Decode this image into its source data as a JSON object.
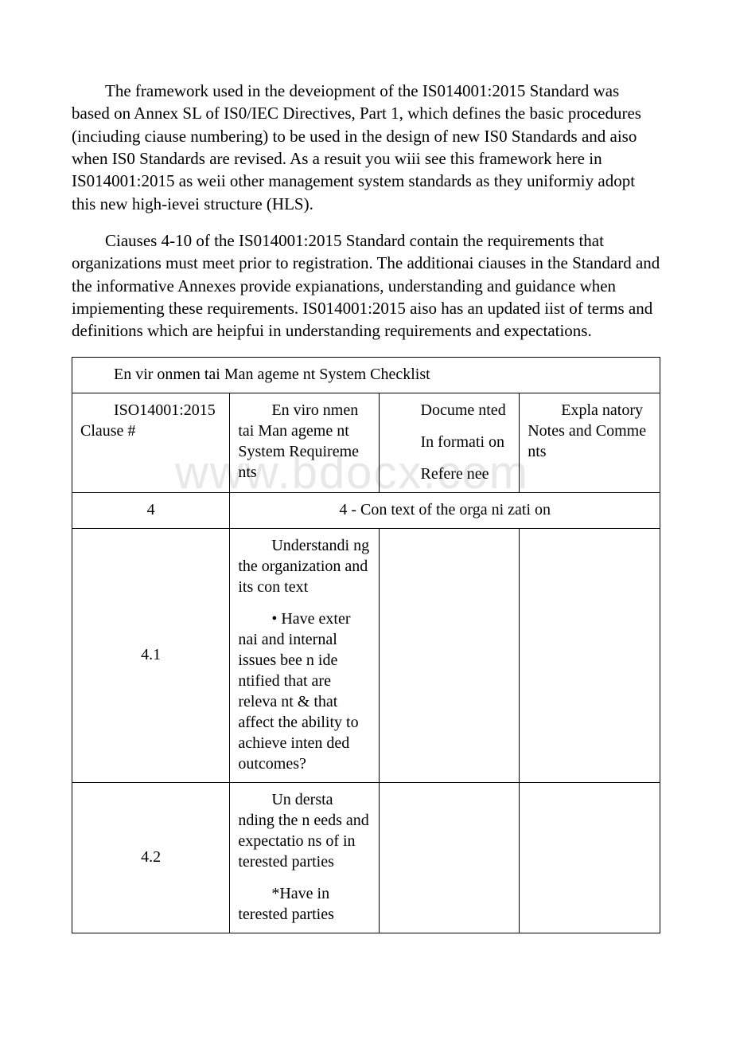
{
  "watermark": "www.bdocx.com",
  "paragraphs": {
    "p1": "The framework used in the deveiopment of the IS014001:2015 Standard was based on Annex SL of IS0/IEC Directives, Part 1, which defines the basic procedures (inciuding ciause numbering) to be used in the design of new IS0 Standards and aiso when IS0 Standards are revised. As a resuit you wiii see this framework here in IS014001:2015 as weii other management system standards as they uniformiy adopt this new high-ievei structure (HLS).",
    "p2": "Ciauses 4-10 of the IS014001:2015 Standard contain the requirements that organizations must meet prior to registration. The additionai ciauses in the Standard and the informative Annexes provide expianations, understanding and guidance when impiementing these requirements. IS014001:2015 aiso has an updated iist of terms and definitions which are heipfui in understanding requirements and expectations."
  },
  "table": {
    "title": "En vir onmen tai Man ageme nt System Checklist",
    "headers": {
      "h1": "ISO14001:2015 Clause #",
      "h2": "En viro nmen tai Man ageme nt System Requireme nts",
      "h3a": "Docume nted",
      "h3b": "In formati on",
      "h3c": "Refere nee",
      "h4": "Expla natory Notes and Comme nts"
    },
    "row_context": {
      "clause": "4",
      "text": "4 - Con text of the orga ni zati on"
    },
    "row_41": {
      "clause": "4.1",
      "text_a": "Understandi ng the organization and its con text",
      "text_b": "• Have exter nai and internal issues bee n ide ntified that are releva nt & that affect the ability to achieve inten ded outcomes?"
    },
    "row_42": {
      "clause": "4.2",
      "text_a": "Un dersta nding the n eeds and expectatio ns of in terested parties",
      "text_b": "*Have in terested parties"
    }
  }
}
